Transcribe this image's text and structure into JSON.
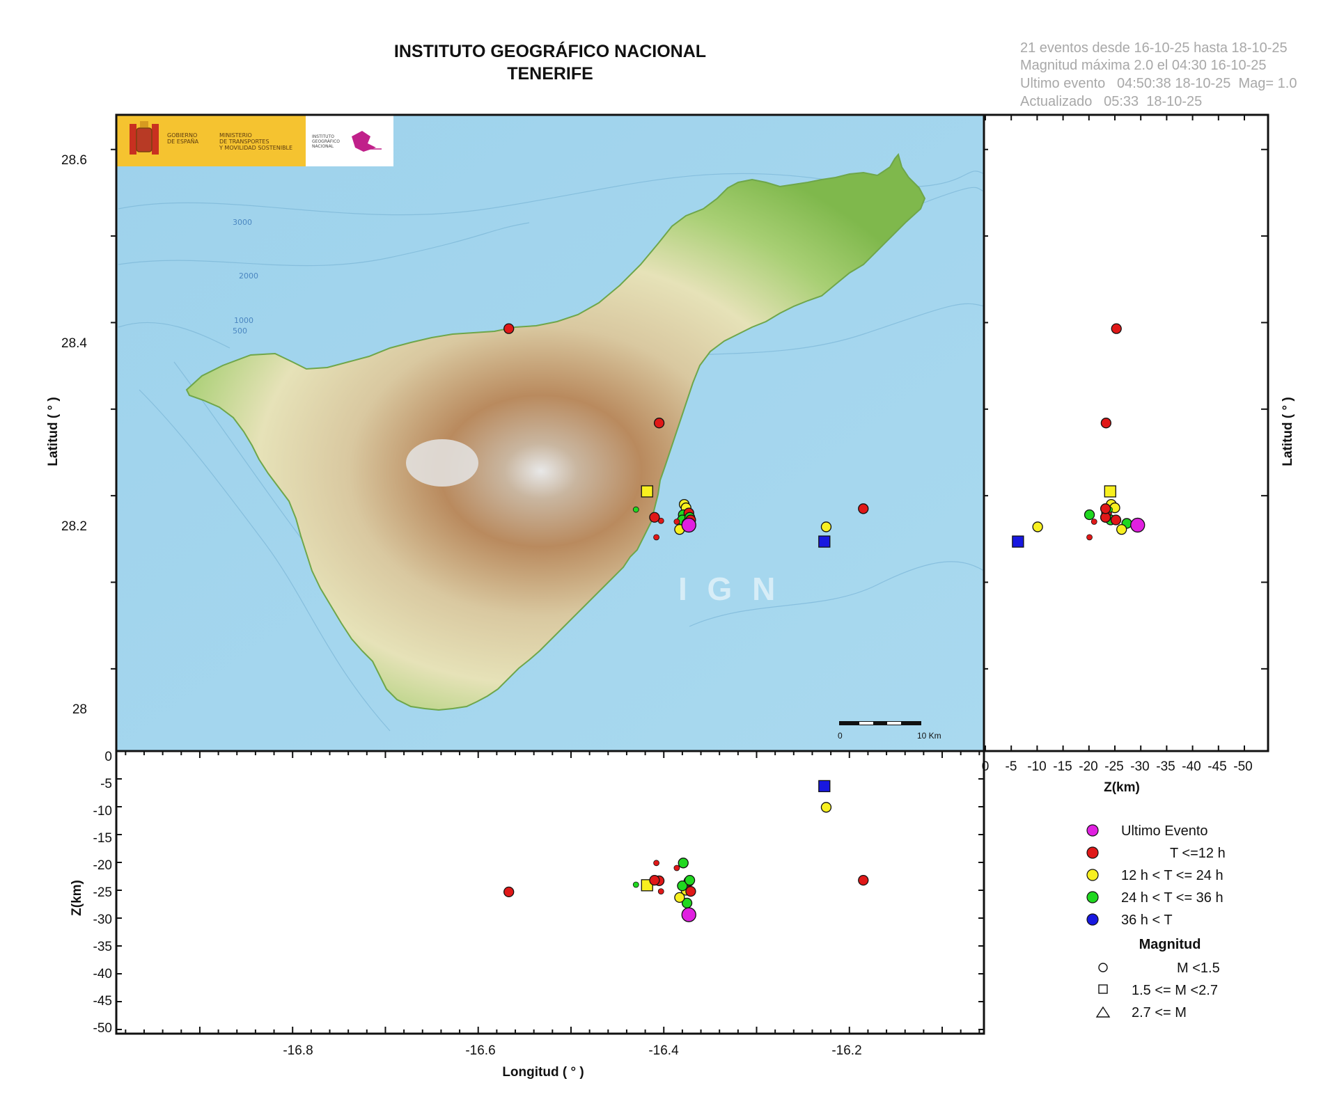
{
  "header": {
    "title_line1": "INSTITUTO GEOGRÁFICO NACIONAL",
    "title_line2": "TENERIFE"
  },
  "info": {
    "line1": "21 eventos desde 16-10-25 hasta 18-10-25",
    "line2": "Magnitud máxima 2.0 el 04:30 16-10-25",
    "line3": "Ultimo evento   04:50:38 18-10-25  Mag= 1.0",
    "line4": "Actualizado   05:33  18-10-25"
  },
  "logo": {
    "gov": "GOBIERNO\nDE ESPAÑA",
    "ministry": "MINISTERIO\nDE TRANSPORTES\nY MOVILIDAD SOSTENIBLE",
    "institute": "INSTITUTO\nGEOGRÁFICO\nNACIONAL"
  },
  "map": {
    "watermark": "I G N",
    "scalebar_start": "0",
    "scalebar_end": "10 Km",
    "bathymetry_labels": [
      "3000",
      "2000",
      "1000",
      "500"
    ],
    "colors": {
      "sea": "#a4d6ee",
      "sea_deep": "#8fcbe8",
      "lowland": "#8cc05a",
      "upland": "#d8cc98",
      "highland": "#b9865a",
      "summit": "#dcdcdc"
    }
  },
  "axes": {
    "lat_label": "Latitud ( ° )",
    "lat_label_right": "Latitud ( ° )",
    "lon_label": "Longitud ( ° )",
    "depth_label": "Z(km)",
    "depth_label_right": "Z(km)",
    "lat_ticks": [
      "28.6",
      "28.4",
      "28.2",
      "28"
    ],
    "lon_ticks": [
      "-16.8",
      "-16.6",
      "-16.4",
      "-16.2"
    ],
    "depth_ticks": [
      "0",
      "-5",
      "-10",
      "-15",
      "-20",
      "-25",
      "-30",
      "-35",
      "-40",
      "-45",
      "-50"
    ],
    "depth_ticks_right": [
      "0",
      "-5",
      "-10",
      "-15",
      "-20",
      "-25",
      "-30",
      "-35",
      "-40",
      "-45",
      "-50"
    ]
  },
  "legend": {
    "items": [
      {
        "label": "Ultimo Evento",
        "color": "#e020e0"
      },
      {
        "label": "T <=12 h",
        "color": "#e01818"
      },
      {
        "label": "12 h  < T <= 24 h",
        "color": "#f8f020"
      },
      {
        "label": "24 h  < T <= 36 h",
        "color": "#20d820"
      },
      {
        "label": "36 h <  T",
        "color": "#1818e0"
      }
    ],
    "mag_title": "Magnitud",
    "mag_items": [
      {
        "label": "M <1.5",
        "shape": "circle"
      },
      {
        "label": "1.5 <= M <2.7",
        "shape": "square"
      },
      {
        "label": "2.7 <= M",
        "shape": "triangle"
      }
    ]
  },
  "chart_data": {
    "type": "scatter",
    "xlim": [
      -16.99,
      -16.055
    ],
    "ylim": [
      27.905,
      28.64
    ],
    "zlim": [
      0,
      -50
    ],
    "events": [
      {
        "lon": -16.567,
        "lat": 28.393,
        "depth": -25.3,
        "category": "red",
        "shape": "circle",
        "size": "m"
      },
      {
        "lon": -16.405,
        "lat": 28.284,
        "depth": -23.3,
        "category": "red",
        "shape": "circle",
        "size": "m"
      },
      {
        "lon": -16.418,
        "lat": 28.205,
        "depth": -24.1,
        "category": "yellow",
        "shape": "square",
        "size": "m"
      },
      {
        "lon": -16.378,
        "lat": 28.19,
        "depth": -24.3,
        "category": "yellow",
        "shape": "circle",
        "size": "m"
      },
      {
        "lon": -16.376,
        "lat": 28.186,
        "depth": -25.0,
        "category": "yellow",
        "shape": "circle",
        "size": "m"
      },
      {
        "lon": -16.379,
        "lat": 28.178,
        "depth": -20.1,
        "category": "green",
        "shape": "circle",
        "size": "m"
      },
      {
        "lon": -16.373,
        "lat": 28.18,
        "depth": -23.4,
        "category": "red",
        "shape": "circle",
        "size": "m"
      },
      {
        "lon": -16.38,
        "lat": 28.172,
        "depth": -24.2,
        "category": "green",
        "shape": "circle",
        "size": "m"
      },
      {
        "lon": -16.372,
        "lat": 28.175,
        "depth": -23.2,
        "category": "green",
        "shape": "circle",
        "size": "m"
      },
      {
        "lon": -16.375,
        "lat": 28.168,
        "depth": -27.3,
        "category": "green",
        "shape": "circle",
        "size": "m"
      },
      {
        "lon": -16.383,
        "lat": 28.161,
        "depth": -26.3,
        "category": "yellow",
        "shape": "circle",
        "size": "m"
      },
      {
        "lon": -16.373,
        "lat": 28.166,
        "depth": -29.4,
        "category": "magenta",
        "shape": "circle",
        "size": "l"
      },
      {
        "lon": -16.43,
        "lat": 28.184,
        "depth": -24.0,
        "category": "green",
        "shape": "circle",
        "size": "s"
      },
      {
        "lon": -16.386,
        "lat": 28.17,
        "depth": -21.0,
        "category": "red",
        "shape": "circle",
        "size": "s"
      },
      {
        "lon": -16.403,
        "lat": 28.171,
        "depth": -25.2,
        "category": "red",
        "shape": "circle",
        "size": "s"
      },
      {
        "lon": -16.408,
        "lat": 28.152,
        "depth": -20.1,
        "category": "red",
        "shape": "circle",
        "size": "s"
      },
      {
        "lon": -16.41,
        "lat": 28.175,
        "depth": -23.2,
        "category": "red",
        "shape": "circle",
        "size": "m"
      },
      {
        "lon": -16.371,
        "lat": 28.172,
        "depth": -25.2,
        "category": "red",
        "shape": "circle",
        "size": "m"
      },
      {
        "lon": -16.225,
        "lat": 28.164,
        "depth": -10.1,
        "category": "yellow",
        "shape": "circle",
        "size": "m"
      },
      {
        "lon": -16.227,
        "lat": 28.147,
        "depth": -6.3,
        "category": "blue",
        "shape": "square",
        "size": "m"
      },
      {
        "lon": -16.185,
        "lat": 28.185,
        "depth": -23.2,
        "category": "red",
        "shape": "circle",
        "size": "m"
      }
    ]
  }
}
